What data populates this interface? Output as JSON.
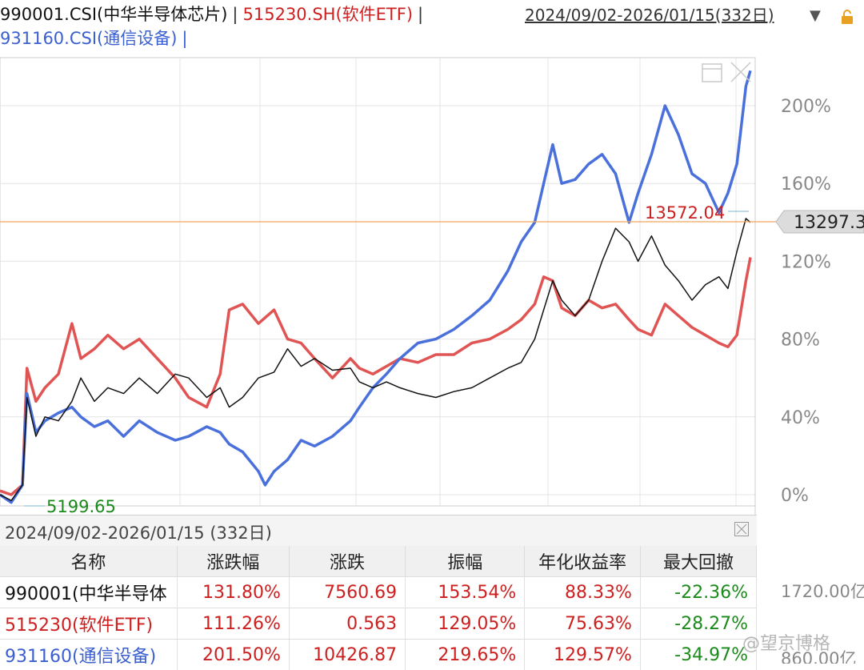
{
  "header": {
    "legend_1": "990001.CSI(中华半导体芯片)",
    "legend_2": "515230.SH(软件ETF)",
    "legend_3": "931160.CSI(通信设备)",
    "separator": "|",
    "date_range": "2024/09/02-2026/01/15(332日)",
    "dropdown_icon": "▼"
  },
  "colors": {
    "semiconductor": "#111111",
    "software_etf": "#e05454",
    "telecom": "#4a70dc",
    "crosshair": "#f0a860",
    "price_up": "#cc1f1f",
    "price_down": "#1a8a1a"
  },
  "chart_data": {
    "type": "line",
    "y_unit": "%",
    "ylim": [
      -5,
      230
    ],
    "yticks": [
      "0%",
      "40%",
      "80%",
      "120%",
      "160%",
      "200%"
    ],
    "ytick_values": [
      0,
      40,
      80,
      120,
      160,
      200
    ],
    "x_range": [
      "2024/09/02",
      "2026/01/15"
    ],
    "grid": true,
    "series": [
      {
        "name": "990001.CSI(中华半导体芯片)",
        "values": [
          [
            0,
            0
          ],
          [
            5,
            -3
          ],
          [
            10,
            5
          ],
          [
            12,
            50
          ],
          [
            16,
            30
          ],
          [
            20,
            40
          ],
          [
            26,
            38
          ],
          [
            32,
            48
          ],
          [
            36,
            60
          ],
          [
            42,
            48
          ],
          [
            48,
            55
          ],
          [
            55,
            52
          ],
          [
            62,
            60
          ],
          [
            70,
            52
          ],
          [
            78,
            62
          ],
          [
            84,
            60
          ],
          [
            92,
            50
          ],
          [
            98,
            55
          ],
          [
            102,
            45
          ],
          [
            108,
            50
          ],
          [
            115,
            60
          ],
          [
            122,
            63
          ],
          [
            128,
            75
          ],
          [
            134,
            66
          ],
          [
            140,
            70
          ],
          [
            148,
            64
          ],
          [
            156,
            65
          ],
          [
            160,
            58
          ],
          [
            166,
            55
          ],
          [
            172,
            58
          ],
          [
            178,
            55
          ],
          [
            186,
            52
          ],
          [
            194,
            50
          ],
          [
            202,
            53
          ],
          [
            210,
            55
          ],
          [
            218,
            60
          ],
          [
            226,
            65
          ],
          [
            232,
            68
          ],
          [
            238,
            80
          ],
          [
            242,
            95
          ],
          [
            246,
            110
          ],
          [
            250,
            100
          ],
          [
            256,
            92
          ],
          [
            262,
            100
          ],
          [
            268,
            120
          ],
          [
            274,
            137
          ],
          [
            280,
            130
          ],
          [
            284,
            120
          ],
          [
            290,
            133
          ],
          [
            296,
            118
          ],
          [
            302,
            110
          ],
          [
            308,
            100
          ],
          [
            314,
            108
          ],
          [
            320,
            112
          ],
          [
            324,
            106
          ],
          [
            328,
            125
          ],
          [
            332,
            142
          ],
          [
            334,
            140
          ]
        ]
      },
      {
        "name": "515230.SH(软件ETF)",
        "values": [
          [
            0,
            2
          ],
          [
            5,
            0
          ],
          [
            10,
            5
          ],
          [
            12,
            65
          ],
          [
            16,
            48
          ],
          [
            20,
            55
          ],
          [
            26,
            62
          ],
          [
            32,
            88
          ],
          [
            36,
            70
          ],
          [
            42,
            75
          ],
          [
            48,
            82
          ],
          [
            55,
            75
          ],
          [
            62,
            80
          ],
          [
            70,
            70
          ],
          [
            78,
            60
          ],
          [
            84,
            50
          ],
          [
            92,
            45
          ],
          [
            98,
            62
          ],
          [
            102,
            95
          ],
          [
            108,
            98
          ],
          [
            115,
            88
          ],
          [
            122,
            95
          ],
          [
            128,
            80
          ],
          [
            134,
            78
          ],
          [
            140,
            70
          ],
          [
            148,
            60
          ],
          [
            156,
            70
          ],
          [
            160,
            65
          ],
          [
            166,
            62
          ],
          [
            172,
            66
          ],
          [
            178,
            70
          ],
          [
            186,
            68
          ],
          [
            194,
            72
          ],
          [
            202,
            72
          ],
          [
            210,
            78
          ],
          [
            218,
            80
          ],
          [
            226,
            85
          ],
          [
            232,
            90
          ],
          [
            238,
            98
          ],
          [
            242,
            112
          ],
          [
            246,
            110
          ],
          [
            250,
            96
          ],
          [
            256,
            92
          ],
          [
            262,
            100
          ],
          [
            268,
            96
          ],
          [
            274,
            98
          ],
          [
            280,
            90
          ],
          [
            284,
            85
          ],
          [
            290,
            82
          ],
          [
            296,
            98
          ],
          [
            302,
            92
          ],
          [
            308,
            86
          ],
          [
            314,
            82
          ],
          [
            320,
            78
          ],
          [
            324,
            76
          ],
          [
            328,
            82
          ],
          [
            332,
            110
          ],
          [
            334,
            122
          ]
        ]
      },
      {
        "name": "931160.CSI(通信设备)",
        "values": [
          [
            0,
            0
          ],
          [
            5,
            -4
          ],
          [
            10,
            5
          ],
          [
            12,
            52
          ],
          [
            16,
            32
          ],
          [
            20,
            38
          ],
          [
            26,
            42
          ],
          [
            32,
            45
          ],
          [
            36,
            40
          ],
          [
            42,
            35
          ],
          [
            48,
            38
          ],
          [
            55,
            30
          ],
          [
            62,
            38
          ],
          [
            70,
            32
          ],
          [
            78,
            28
          ],
          [
            84,
            30
          ],
          [
            92,
            35
          ],
          [
            98,
            32
          ],
          [
            102,
            26
          ],
          [
            108,
            22
          ],
          [
            115,
            12
          ],
          [
            118,
            5
          ],
          [
            122,
            12
          ],
          [
            128,
            18
          ],
          [
            134,
            28
          ],
          [
            140,
            25
          ],
          [
            148,
            30
          ],
          [
            156,
            38
          ],
          [
            160,
            45
          ],
          [
            166,
            55
          ],
          [
            172,
            62
          ],
          [
            178,
            70
          ],
          [
            186,
            78
          ],
          [
            194,
            80
          ],
          [
            202,
            85
          ],
          [
            210,
            92
          ],
          [
            218,
            100
          ],
          [
            226,
            115
          ],
          [
            232,
            130
          ],
          [
            238,
            140
          ],
          [
            242,
            160
          ],
          [
            246,
            180
          ],
          [
            250,
            160
          ],
          [
            256,
            162
          ],
          [
            262,
            170
          ],
          [
            268,
            175
          ],
          [
            274,
            165
          ],
          [
            280,
            140
          ],
          [
            284,
            155
          ],
          [
            290,
            175
          ],
          [
            296,
            200
          ],
          [
            302,
            185
          ],
          [
            308,
            165
          ],
          [
            314,
            160
          ],
          [
            320,
            145
          ],
          [
            324,
            155
          ],
          [
            328,
            170
          ],
          [
            332,
            210
          ],
          [
            334,
            218
          ]
        ]
      }
    ],
    "annotations": {
      "last_price": "13297.3",
      "max_label": "13572.04",
      "min_label": "5199.65"
    },
    "volume_axis": [
      "1720.00亿",
      "860.00亿"
    ]
  },
  "table": {
    "title": "2024/09/02-2026/01/15 (332日)",
    "headers": [
      "名称",
      "涨跌幅",
      "涨跌",
      "振幅",
      "年化收益率",
      "最大回撤"
    ],
    "rows": [
      {
        "name": "990001(中华半导体",
        "change_pct": "131.80%",
        "change": "7560.69",
        "amplitude": "153.54%",
        "annual": "88.33%",
        "drawdown": "-22.36%"
      },
      {
        "name": "515230(软件ETF)",
        "change_pct": "111.26%",
        "change": "0.563",
        "amplitude": "129.05%",
        "annual": "75.63%",
        "drawdown": "-28.27%"
      },
      {
        "name": "931160(通信设备)",
        "change_pct": "201.50%",
        "change": "10426.87",
        "amplitude": "219.65%",
        "annual": "129.57%",
        "drawdown": "-34.97%"
      }
    ]
  },
  "watermark": "@望京博格"
}
